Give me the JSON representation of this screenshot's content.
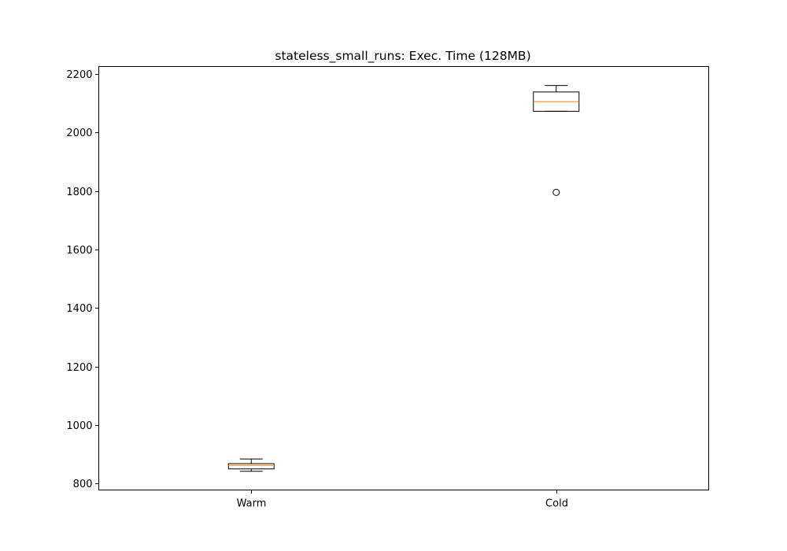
{
  "chart_data": {
    "type": "box",
    "title": "stateless_small_runs: Exec. Time (128MB)",
    "xlabel": "",
    "ylabel": "",
    "categories": [
      "Warm",
      "Cold"
    ],
    "boxes": [
      {
        "name": "Warm",
        "whisker_low": 842,
        "q1": 850,
        "median": 862,
        "q3": 868,
        "whisker_high": 884,
        "outliers": []
      },
      {
        "name": "Cold",
        "whisker_low": 2072,
        "q1": 2072,
        "median": 2105,
        "q3": 2138,
        "whisker_high": 2160,
        "outliers": [
          1795
        ]
      }
    ],
    "y_ticks": [
      800,
      1000,
      1200,
      1400,
      1600,
      1800,
      2000,
      2200
    ],
    "ylim": [
      778,
      2225
    ],
    "grid": false,
    "legend": "none",
    "colors": {
      "box": "#000000",
      "median": "#ff7f0e",
      "axes": "#000000",
      "background": "#ffffff"
    }
  }
}
